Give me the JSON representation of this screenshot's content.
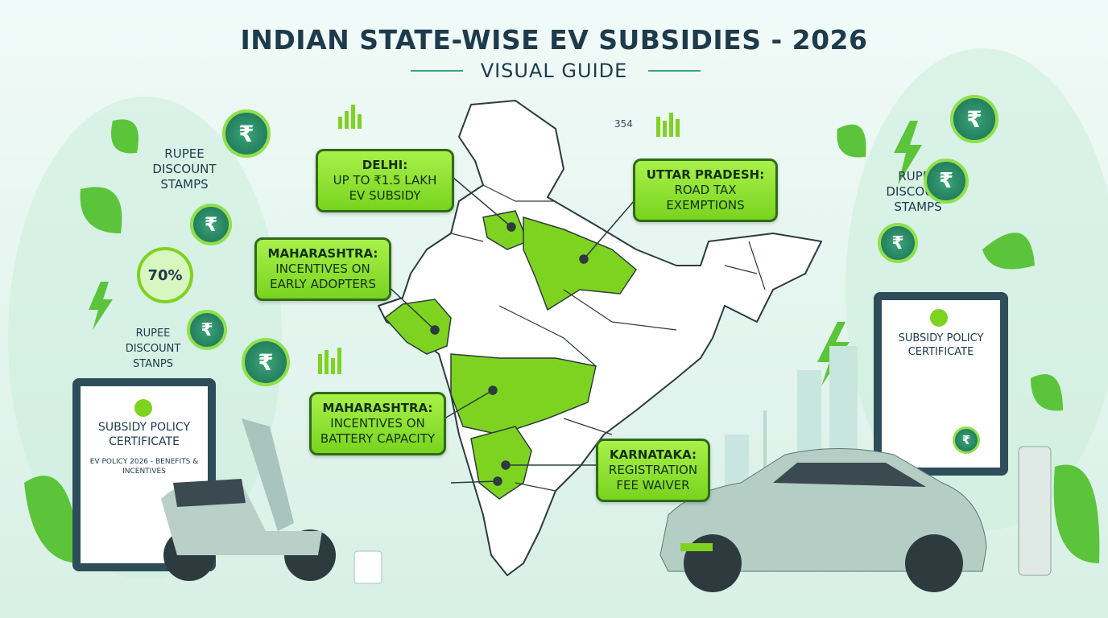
{
  "header": {
    "title": "INDIAN STATE-WISE EV SUBSIDIES - 2026",
    "subtitle": "VISUAL GUIDE"
  },
  "callouts": [
    {
      "state": "DELHI:",
      "text": "UP TO ₹1.5 LAKH EV SUBSIDY"
    },
    {
      "state": "UTTAR PRADESH:",
      "text": "ROAD TAX EXEMPTIONS"
    },
    {
      "state": "MAHARASHTRA:",
      "text": "INCENTIVES ON EARLY ADOPTERS"
    },
    {
      "state": "MAHARASHTRA:",
      "text": "INCENTIVES ON BATTERY CAPACITY"
    },
    {
      "state": "KARNATAKA:",
      "text": "REGISTRATION FEE WAIVER"
    }
  ],
  "side_labels": [
    "RUPEE DISCOUNT STAMPS",
    "RUPEE DISCOUNT STAMPS",
    "RUPEE DISCOUNT STANPS"
  ],
  "badge": "70%",
  "chart_number": "354",
  "coin_symbol": "₹",
  "certificates": [
    {
      "title": "SUBSIDY POLICY CERTIFICATE",
      "subtitle": "EV POLICY 2026 - BENEFITS & INCENTIVES"
    },
    {
      "title": "SUBSIDY POLICY CERTIFICATE"
    }
  ]
}
